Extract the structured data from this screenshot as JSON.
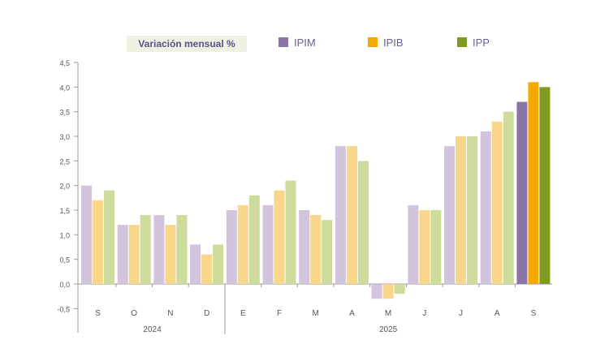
{
  "legend": {
    "title": "Variación mensual %",
    "items": [
      {
        "label": "IPIM",
        "color": "#8c73a8"
      },
      {
        "label": "IPIB",
        "color": "#f5a800"
      },
      {
        "label": "IPP",
        "color": "#7e9a1f"
      }
    ]
  },
  "chart_data": {
    "type": "bar",
    "title": "",
    "xlabel": "",
    "ylabel": "",
    "categories": [
      "S",
      "O",
      "N",
      "D",
      "E",
      "F",
      "M",
      "A",
      "M",
      "J",
      "J",
      "A",
      "S"
    ],
    "year_groups": [
      {
        "label": "2024",
        "start": 0,
        "end": 3
      },
      {
        "label": "2025",
        "start": 4,
        "end": 12
      }
    ],
    "series": [
      {
        "name": "IPIM",
        "values": [
          2.0,
          1.2,
          1.4,
          0.8,
          1.5,
          1.6,
          1.5,
          2.8,
          -0.3,
          1.6,
          2.8,
          3.1,
          3.7
        ]
      },
      {
        "name": "IPIB",
        "values": [
          1.7,
          1.2,
          1.2,
          0.6,
          1.6,
          1.9,
          1.4,
          2.8,
          -0.3,
          1.5,
          3.0,
          3.3,
          4.1
        ]
      },
      {
        "name": "IPP",
        "values": [
          1.9,
          1.4,
          1.4,
          0.8,
          1.8,
          2.1,
          1.3,
          2.5,
          -0.2,
          1.5,
          3.0,
          3.5,
          4.0
        ]
      }
    ],
    "colors_light": [
      "#d2c4dc",
      "#fad68a",
      "#cddc9a"
    ],
    "colors_dark": [
      "#8c73a8",
      "#f5a800",
      "#7e9a1f"
    ],
    "highlight_index": 12,
    "yticks": [
      "4,5",
      "4,0",
      "3,5",
      "3,0",
      "2,5",
      "2,0",
      "1,5",
      "1,0",
      "0,5",
      "0,0",
      "-0,5"
    ],
    "ylim": [
      -0.5,
      4.5
    ]
  }
}
